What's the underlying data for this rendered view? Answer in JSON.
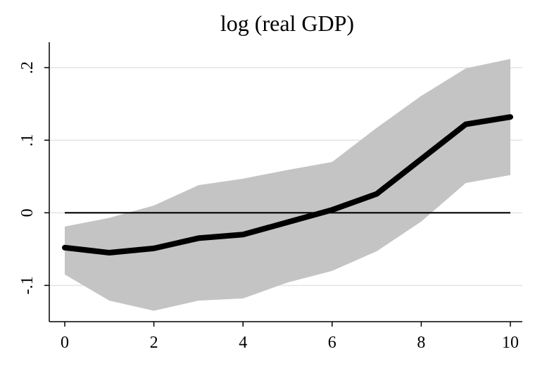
{
  "chart_data": {
    "type": "area",
    "title": "log (real GDP)",
    "xlabel": "",
    "ylabel": "",
    "xlim": [
      0,
      10
    ],
    "ylim": [
      -0.15,
      0.235
    ],
    "x_ticks": [
      0,
      2,
      4,
      6,
      8,
      10
    ],
    "x_tick_labels": [
      "0",
      "2",
      "4",
      "6",
      "8",
      "10"
    ],
    "y_ticks": [
      -0.1,
      0,
      0.1,
      0.2
    ],
    "y_tick_labels": [
      "-.1",
      "0",
      ".1",
      ".2"
    ],
    "grid": true,
    "reference_line_y": 0,
    "x": [
      0,
      1,
      2,
      3,
      4,
      5,
      6,
      7,
      8,
      9,
      10
    ],
    "series": [
      {
        "values": [
          -0.048,
          -0.055,
          -0.049,
          -0.035,
          -0.03,
          -0.013,
          0.004,
          0.026,
          0.074,
          0.122,
          0.132
        ]
      }
    ],
    "band": {
      "lower": [
        -0.085,
        -0.121,
        -0.135,
        -0.121,
        -0.118,
        -0.096,
        -0.08,
        -0.053,
        -0.012,
        0.041,
        0.052
      ],
      "upper": [
        -0.019,
        -0.007,
        0.01,
        0.038,
        0.047,
        0.059,
        0.07,
        0.117,
        0.161,
        0.199,
        0.212
      ]
    },
    "colors": {
      "line": "#000000",
      "band": "#c4c4c4",
      "reference": "#000000",
      "grid": "#e3e3e3"
    }
  }
}
